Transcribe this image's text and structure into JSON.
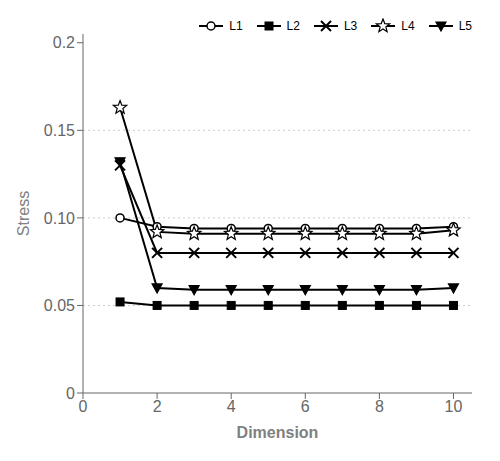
{
  "chart_data": {
    "type": "line",
    "x": [
      1,
      2,
      3,
      4,
      5,
      6,
      7,
      8,
      9,
      10
    ],
    "series": [
      {
        "name": "L1",
        "color": "#000000",
        "marker": "circle",
        "values": [
          0.1,
          0.095,
          0.094,
          0.094,
          0.094,
          0.094,
          0.094,
          0.094,
          0.094,
          0.095
        ]
      },
      {
        "name": "L2",
        "color": "#000000",
        "marker": "square",
        "values": [
          0.052,
          0.05,
          0.05,
          0.05,
          0.05,
          0.05,
          0.05,
          0.05,
          0.05,
          0.05
        ]
      },
      {
        "name": "L3",
        "color": "#000000",
        "marker": "x",
        "values": [
          0.13,
          0.08,
          0.08,
          0.08,
          0.08,
          0.08,
          0.08,
          0.08,
          0.08,
          0.08
        ]
      },
      {
        "name": "L4",
        "color": "#000000",
        "marker": "star",
        "values": [
          0.163,
          0.092,
          0.091,
          0.091,
          0.091,
          0.091,
          0.091,
          0.091,
          0.091,
          0.093
        ]
      },
      {
        "name": "L5",
        "color": "#000000",
        "marker": "triangle_down",
        "values": [
          0.132,
          0.06,
          0.059,
          0.059,
          0.059,
          0.059,
          0.059,
          0.059,
          0.059,
          0.06
        ]
      }
    ],
    "hlines": [
      0.05,
      0.1,
      0.15
    ],
    "x_label": "Dimension",
    "y_label": "Stress",
    "xlim": [
      0,
      10.5
    ],
    "ylim": [
      0,
      0.205
    ],
    "xticks": [
      0,
      2,
      4,
      6,
      8,
      10
    ],
    "yticks": [
      0,
      0.05,
      {
        "value": 0.1,
        "label": "0.10"
      },
      0.15,
      0.2
    ],
    "grid": false,
    "legend": "upper right"
  }
}
